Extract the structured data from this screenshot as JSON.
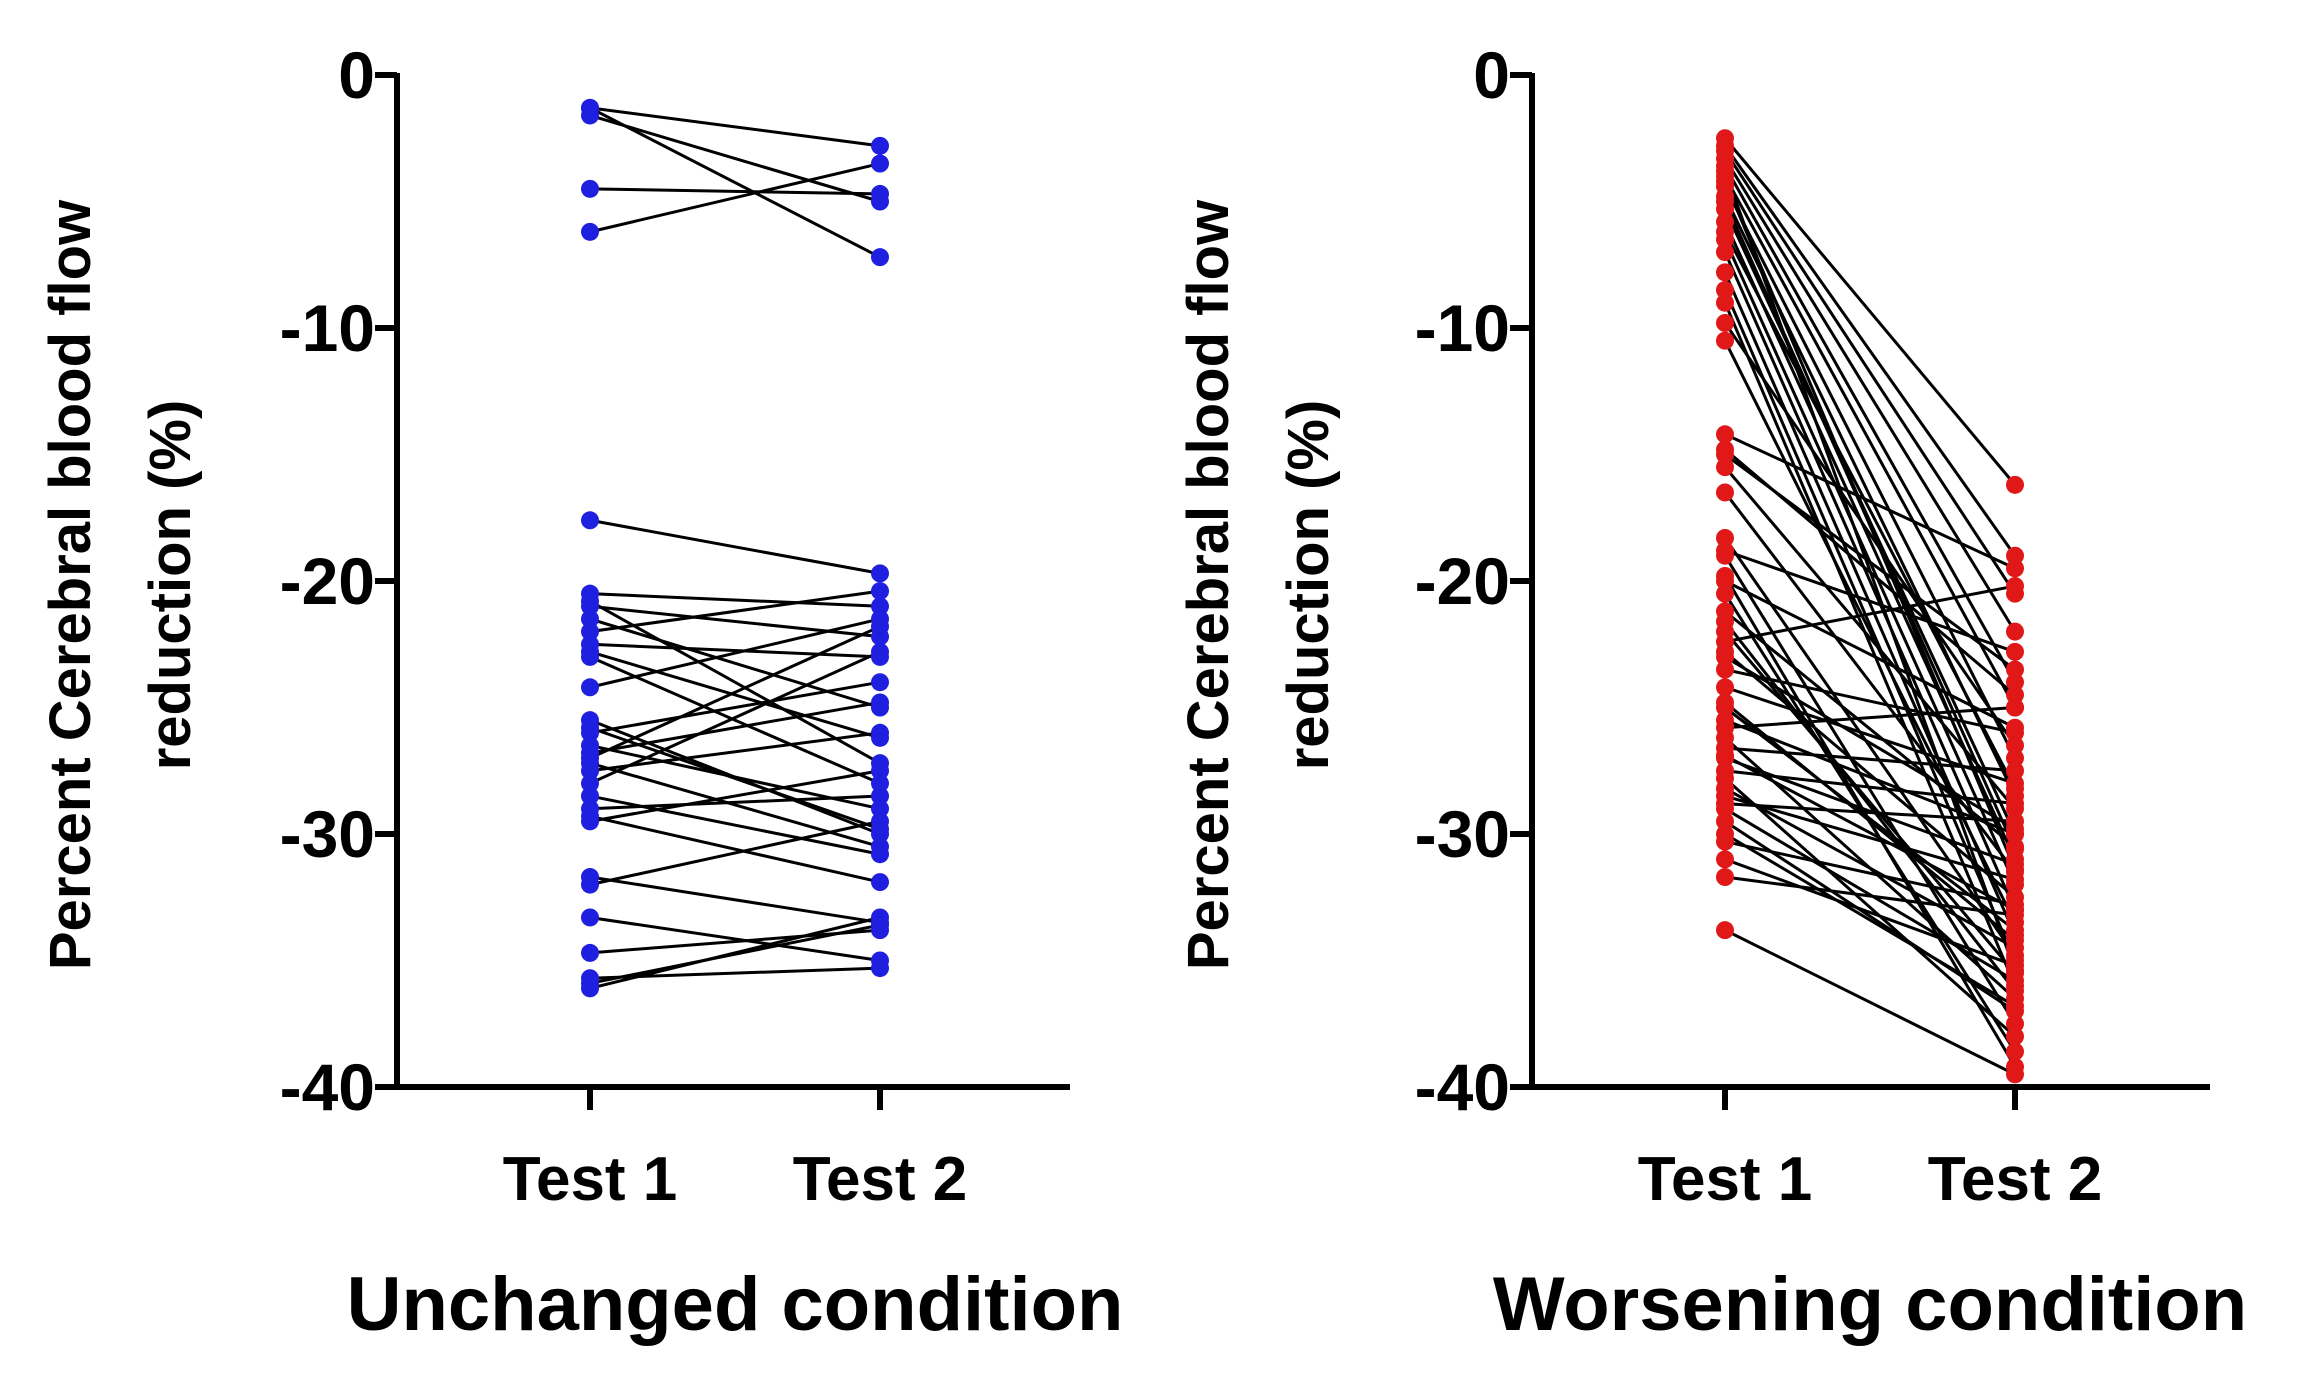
{
  "chart_data": [
    {
      "type": "line",
      "title": "",
      "xlabel": "Unchanged condition",
      "ylabel_lines": [
        "Percent Cerebral blood flow",
        "reduction (%)"
      ],
      "categories": [
        "Test 1",
        "Test 2"
      ],
      "ylim": [
        -40,
        0
      ],
      "yticks": [
        0,
        -10,
        -20,
        -30,
        -40
      ],
      "ytick_labels": [
        "0",
        "-10",
        "-20",
        "-30",
        "-40"
      ],
      "marker_color": "#1f1fe0",
      "line_color": "#000000",
      "pairs": [
        [
          -1.3,
          -2.8
        ],
        [
          -1.6,
          -5.0
        ],
        [
          -4.5,
          -4.7
        ],
        [
          -6.2,
          -3.5
        ],
        [
          -1.3,
          -7.2
        ],
        [
          -17.6,
          -19.7
        ],
        [
          -20.5,
          -21.0
        ],
        [
          -20.8,
          -27.2
        ],
        [
          -21.0,
          -22.2
        ],
        [
          -21.5,
          -25.0
        ],
        [
          -22.0,
          -20.4
        ],
        [
          -22.5,
          -23.0
        ],
        [
          -23.0,
          -28.0
        ],
        [
          -24.2,
          -21.5
        ],
        [
          -25.5,
          -30.0
        ],
        [
          -26.0,
          -24.0
        ],
        [
          -26.5,
          -29.0
        ],
        [
          -27.0,
          -21.8
        ],
        [
          -27.2,
          -30.5
        ],
        [
          -27.5,
          -26.0
        ],
        [
          -28.0,
          -22.8
        ],
        [
          -28.5,
          -30.8
        ],
        [
          -29.0,
          -28.5
        ],
        [
          -29.5,
          -27.5
        ],
        [
          -29.3,
          -31.9
        ],
        [
          -31.7,
          -33.5
        ],
        [
          -32.0,
          -29.5
        ],
        [
          -33.3,
          -35.0
        ],
        [
          -34.7,
          -33.8
        ],
        [
          -35.7,
          -35.3
        ],
        [
          -36.1,
          -33.3
        ],
        [
          -35.9,
          -33.6
        ],
        [
          -25.8,
          -29.8
        ],
        [
          -22.8,
          -26.2
        ],
        [
          -26.8,
          -24.8
        ]
      ]
    },
    {
      "type": "line",
      "title": "",
      "xlabel": "Worsening condition",
      "ylabel_lines": [
        "Percent Cerebral blood flow",
        "reduction (%)"
      ],
      "categories": [
        "Test 1",
        "Test 2"
      ],
      "ylim": [
        -40,
        0
      ],
      "yticks": [
        0,
        -10,
        -20,
        -30,
        -40
      ],
      "ytick_labels": [
        "0",
        "-10",
        "-20",
        "-30",
        "-40"
      ],
      "marker_color": "#e01818",
      "line_color": "#000000",
      "pairs": [
        [
          -2.5,
          -16.2
        ],
        [
          -2.8,
          -19.0
        ],
        [
          -3.0,
          -20.5
        ],
        [
          -3.3,
          -22.0
        ],
        [
          -3.6,
          -24.0
        ],
        [
          -4.0,
          -25.0
        ],
        [
          -4.4,
          -27.0
        ],
        [
          -4.8,
          -28.5
        ],
        [
          -5.3,
          -30.0
        ],
        [
          -5.8,
          -31.0
        ],
        [
          -6.5,
          -32.0
        ],
        [
          -7.0,
          -33.0
        ],
        [
          -7.8,
          -34.0
        ],
        [
          -8.5,
          -35.0
        ],
        [
          -9.0,
          -36.0
        ],
        [
          -10.5,
          -33.5
        ],
        [
          -14.2,
          -19.5
        ],
        [
          -14.8,
          -24.5
        ],
        [
          -15.5,
          -29.0
        ],
        [
          -16.5,
          -31.5
        ],
        [
          -18.3,
          -34.8
        ],
        [
          -19.0,
          -37.5
        ],
        [
          -19.8,
          -39.2
        ],
        [
          -20.5,
          -38.6
        ],
        [
          -21.2,
          -30.5
        ],
        [
          -22.0,
          -35.5
        ],
        [
          -22.8,
          -32.5
        ],
        [
          -23.5,
          -26.0
        ],
        [
          -24.2,
          -28.0
        ],
        [
          -25.0,
          -33.8
        ],
        [
          -25.5,
          -30.0
        ],
        [
          -26.2,
          -36.5
        ],
        [
          -27.0,
          -31.2
        ],
        [
          -27.5,
          -28.8
        ],
        [
          -28.2,
          -34.5
        ],
        [
          -28.8,
          -29.5
        ],
        [
          -29.5,
          -37.0
        ],
        [
          -30.3,
          -32.8
        ],
        [
          -31.0,
          -35.2
        ],
        [
          -31.7,
          -33.2
        ],
        [
          -33.8,
          -39.5
        ],
        [
          -20.0,
          -25.8
        ],
        [
          -18.8,
          -22.8
        ],
        [
          -23.0,
          -29.8
        ],
        [
          -26.6,
          -27.5
        ],
        [
          -28.5,
          -31.8
        ],
        [
          -29.0,
          -35.8
        ],
        [
          -24.8,
          -34.2
        ],
        [
          -21.6,
          -36.2
        ],
        [
          -15.0,
          -23.5
        ],
        [
          -9.8,
          -26.5
        ],
        [
          -5.0,
          -30.6
        ],
        [
          -3.8,
          -35.4
        ],
        [
          -6.2,
          -28.2
        ],
        [
          -25.8,
          -25.0
        ],
        [
          -22.4,
          -20.2
        ],
        [
          -27.8,
          -38.0
        ],
        [
          -30.0,
          -36.8
        ],
        [
          -26.9,
          -33.0
        ],
        [
          -4.2,
          -31.4
        ]
      ]
    }
  ]
}
